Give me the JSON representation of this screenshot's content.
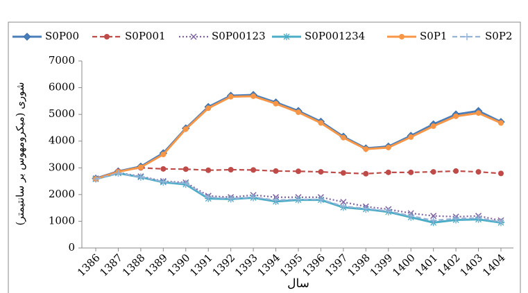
{
  "chart_data": {
    "type": "line",
    "y_label": "شوری (میکرومهوس بر سانتیمتر)",
    "x_label": "سال",
    "categories": [
      "1386",
      "1387",
      "1388",
      "1389",
      "1390",
      "1391",
      "1392",
      "1393",
      "1394",
      "1395",
      "1396",
      "1397",
      "1398",
      "1399",
      "1400",
      "1401",
      "1402",
      "1403",
      "1404"
    ],
    "ylim": [
      0,
      7000
    ],
    "yticks": [
      0,
      1000,
      2000,
      3000,
      4000,
      5000,
      6000,
      7000
    ],
    "legend": "top",
    "series": [
      {
        "name": "S0P00",
        "color": "#4a7ebb",
        "marker": "diamond",
        "line_style": "solid",
        "values": [
          2600,
          2870,
          3050,
          3550,
          4480,
          5280,
          5700,
          5730,
          5450,
          5130,
          4730,
          4170,
          3730,
          3800,
          4200,
          4630,
          5000,
          5130,
          4720
        ]
      },
      {
        "name": "S0P001",
        "color": "#be4b48",
        "marker": "circle",
        "line_style": "dashed",
        "values": [
          2600,
          2870,
          3000,
          2960,
          2950,
          2910,
          2930,
          2920,
          2880,
          2870,
          2850,
          2810,
          2780,
          2830,
          2830,
          2850,
          2880,
          2850,
          2790
        ]
      },
      {
        "name": "S0P00123",
        "color": "#7d60a0",
        "marker": "x",
        "line_style": "dotted",
        "values": [
          2600,
          2820,
          2680,
          2500,
          2450,
          1950,
          1900,
          1980,
          1900,
          1900,
          1900,
          1720,
          1550,
          1450,
          1300,
          1200,
          1170,
          1200,
          1030
        ]
      },
      {
        "name": "S0P001234",
        "color": "#4bacc6",
        "marker": "star",
        "line_style": "solid",
        "values": [
          2580,
          2800,
          2650,
          2460,
          2380,
          1850,
          1830,
          1880,
          1740,
          1800,
          1800,
          1520,
          1450,
          1350,
          1150,
          950,
          1050,
          1070,
          950
        ]
      },
      {
        "name": "S0P1",
        "color": "#f79646",
        "marker": "circle",
        "line_style": "solid",
        "values": [
          2580,
          2850,
          3020,
          3500,
          4450,
          5230,
          5660,
          5680,
          5400,
          5080,
          4680,
          4130,
          3700,
          3760,
          4150,
          4560,
          4930,
          5050,
          4680
        ]
      },
      {
        "name": "S0P2",
        "color": "#95b3d7",
        "marker": "plus",
        "line_style": "dashed",
        "values": [
          2580,
          2800,
          2660,
          2480,
          2420,
          1900,
          1850,
          1900,
          1790,
          1820,
          1820,
          1560,
          1480,
          1380,
          1200,
          1030,
          1100,
          1120,
          980
        ]
      }
    ]
  }
}
